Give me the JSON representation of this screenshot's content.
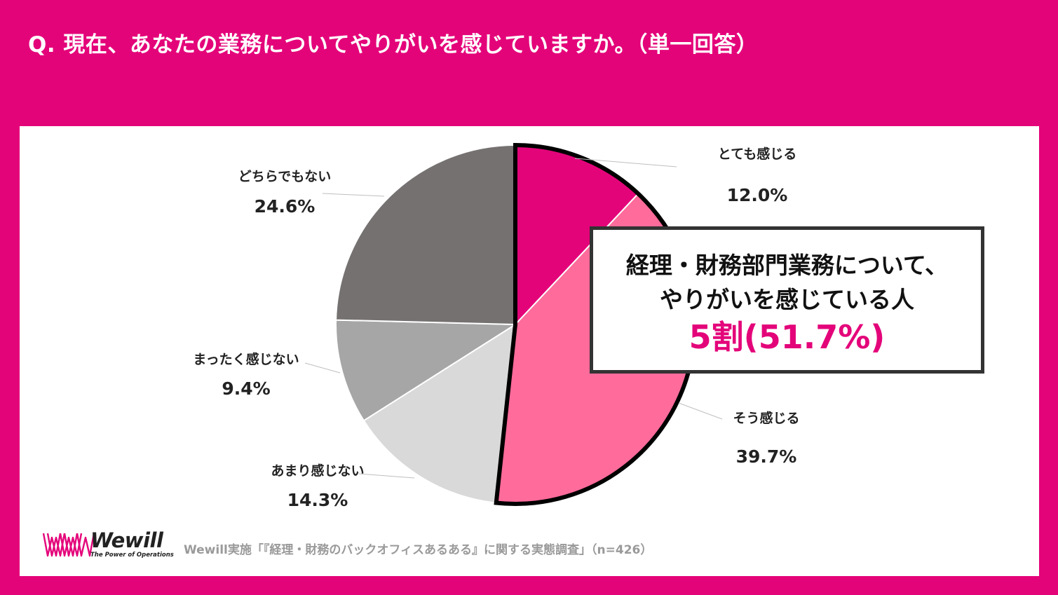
{
  "question": "Q. 現在、あなたの業務についてやりがいを感じていますか。（単一回答）",
  "callout": {
    "line1": "経理・財務部門業務について、",
    "line2": "やりがいを感じている人",
    "line3": "5割(51.7%)"
  },
  "logo": {
    "wordmark": "Wewill",
    "tagline": "The Power of Operations"
  },
  "source": "Wewill実施「『経理・財務のバックオフィスあるある』に関する実態調査」（n=426）",
  "colors": {
    "background": "#e4047a",
    "panel": "#ffffff",
    "accent": "#e4047a"
  },
  "chart_data": {
    "type": "pie",
    "start_angle_deg": 0,
    "direction": "clockwise",
    "slices": [
      {
        "label": "とても感じる",
        "value": 12.0,
        "display": "12.0%",
        "color": "#e4047a"
      },
      {
        "label": "そう感じる",
        "value": 39.7,
        "display": "39.7%",
        "color": "#ff6b9b"
      },
      {
        "label": "あまり感じない",
        "value": 14.3,
        "display": "14.3%",
        "color": "#d9d9d9"
      },
      {
        "label": "まったく感じない",
        "value": 9.4,
        "display": "9.4%",
        "color": "#a6a6a6"
      },
      {
        "label": "どちらでもない",
        "value": 24.6,
        "display": "24.6%",
        "color": "#757171"
      }
    ],
    "highlighted_slices": [
      "とても感じる",
      "そう感じる"
    ]
  }
}
